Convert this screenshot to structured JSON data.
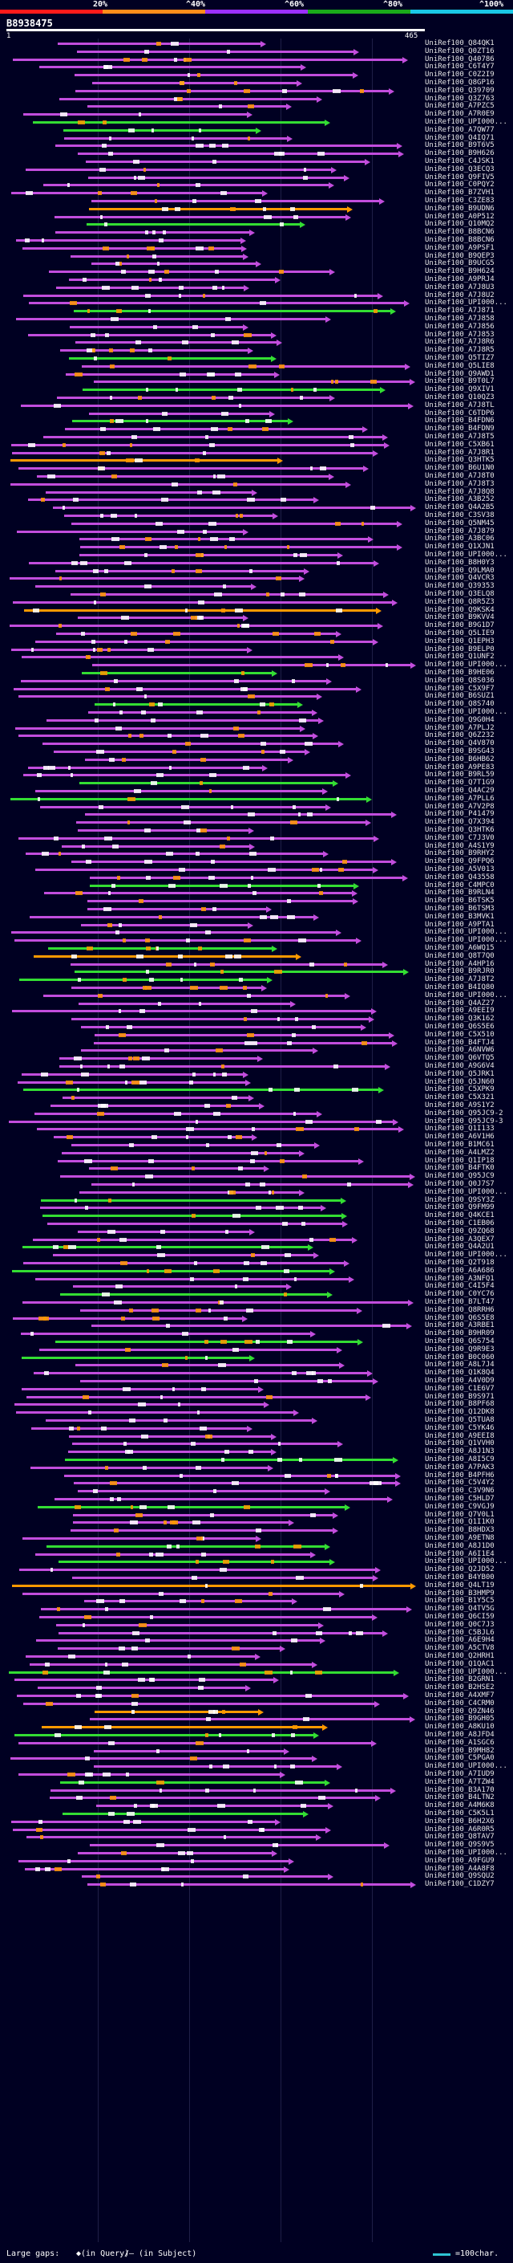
{
  "scale": {
    "labels": [
      "20%",
      "^40%",
      "^60%",
      "^80%",
      "^100%"
    ],
    "colors": [
      "#ff1a1a",
      "#ff8c1a",
      "#9b30ff",
      "#1aaa1a",
      "#1ac8e6"
    ]
  },
  "query": {
    "id": "B8938475",
    "start": "1",
    "end": "465"
  },
  "colors": {
    "purple": "#c24ddd",
    "green": "#33dd33",
    "orange": "#ff9900",
    "magenta": "#ff66ff"
  },
  "hits": [
    "UniRef100_Q84QK1",
    "UniRef100_Q0ZT16",
    "UniRef100_Q40786",
    "UniRef100_C6T4Y7",
    "UniRef100_C0Z2I9",
    "UniRef100_Q8GP16",
    "UniRef100_Q39709",
    "UniRef100_Q3Z763",
    "UniRef100_A7PZC5",
    "UniRef100_A7R0E9",
    "UniRef100_UPI000...",
    "UniRef100_A7QW77",
    "UniRef100_Q4IQ71",
    "UniRef100_B9T6V5",
    "UniRef100_B9H626",
    "UniRef100_C4JSK1",
    "UniRef100_Q3ECQ3",
    "UniRef100_Q9FIV5",
    "UniRef100_C0PQY2",
    "UniRef100_B7ZVH1",
    "UniRef100_C3ZE83",
    "UniRef100_B9UDN6",
    "UniRef100_A0P512",
    "UniRef100_Q10MQ2",
    "UniRef100_B8BCN6",
    "UniRef100_B8BCN6",
    "UniRef100_A9PSF1",
    "UniRef100_B9QEP3",
    "UniRef100_B9UCG5",
    "UniRef100_B9H624",
    "UniRef100_A9PRJ4",
    "UniRef100_A7J8U3",
    "UniRef100_A7J8U2",
    "UniRef100_UPI000...",
    "UniRef100_A7J871",
    "UniRef100_A7J858",
    "UniRef100_A7J856",
    "UniRef100_A7J853",
    "UniRef100_A7J8R6",
    "UniRef100_A7J8R5",
    "UniRef100_Q5TIZ7",
    "UniRef100_Q5LIE8",
    "UniRef100_Q9AWD1",
    "UniRef100_B9T0L7",
    "UniRef100_Q9XIV1",
    "UniRef100_Q10QZ3",
    "UniRef100_A7J8TL",
    "UniRef100_C6TDP6",
    "UniRef100_B4FDN6",
    "UniRef100_B4FDN9",
    "UniRef100_A7J8T5",
    "UniRef100_C5XB61",
    "UniRef100_A7J8R1",
    "UniRef100_Q3HTK5",
    "UniRef100_B6U1N0",
    "UniRef100_A7J8T0",
    "UniRef100_A7J8T3",
    "UniRef100_A7J8Q8",
    "UniRef100_A3B252",
    "UniRef100_Q4A2B5",
    "UniRef100_C3SV38",
    "UniRef100_Q5NM45",
    "UniRef100_A7J879",
    "UniRef100_A3BC06",
    "UniRef100_Q1XJN1",
    "UniRef100_UPI000...",
    "UniRef100_B8H0Y3",
    "UniRef100_Q9LMA0",
    "UniRef100_Q4VCR3",
    "UniRef100_Q39353",
    "UniRef100_Q3ELQ8",
    "UniRef100_Q8R5Z3",
    "UniRef100_Q9KSK4",
    "UniRef100_B9KVV4",
    "UniRef100_B9G1D7",
    "UniRef100_Q5LIE9",
    "UniRef100_Q1EPH3",
    "UniRef100_B9ELP0",
    "UniRef100_Q1UNF2",
    "UniRef100_UPI000...",
    "UniRef100_B9HE06",
    "UniRef100_Q8S036",
    "UniRef100_C5X9F7",
    "UniRef100_B6SUZ1",
    "UniRef100_Q8S740",
    "UniRef100_UPI000...",
    "UniRef100_Q9G0H4",
    "UniRef100_A7PLJ2",
    "UniRef100_Q6Z232",
    "UniRef100_Q4V870",
    "UniRef100_B9SG43",
    "UniRef100_B6HB62",
    "UniRef100_A9PE83",
    "UniRef100_B9RL59",
    "UniRef100_Q7T1G9",
    "UniRef100_Q4AC29",
    "UniRef100_A7PLL6",
    "UniRef100_A7V2P8",
    "UniRef100_P41479",
    "UniRef100_Q7X394",
    "UniRef100_Q3HTK6",
    "UniRef100_C7J3V0",
    "UniRef100_A4S1Y9",
    "UniRef100_B9RHY2",
    "UniRef100_Q9FPQ6",
    "UniRef100_A5V013",
    "UniRef100_Q43558",
    "UniRef100_C4MPC0",
    "UniRef100_B9RLN4",
    "UniRef100_B6TSK5",
    "UniRef100_B6TSM3",
    "UniRef100_B3MVK1",
    "UniRef100_A9PTA1",
    "UniRef100_UPI000...",
    "UniRef100_UPI000...",
    "UniRef100_A6WQ15",
    "UniRef100_Q8T7Q0",
    "UniRef100_A4HP16",
    "UniRef100_B9RJR0",
    "UniRef100_A7J8T2",
    "UniRef100_B4IQ80",
    "UniRef100_UPI000...",
    "UniRef100_Q4AZ27",
    "UniRef100_A9EEI9",
    "UniRef100_Q3K162",
    "UniRef100_Q6S5E6",
    "UniRef100_C5X510",
    "UniRef100_B4FTJ4",
    "UniRef100_A6NVW6",
    "UniRef100_Q6VTQ5",
    "UniRef100_A9G6V4",
    "UniRef100_Q5JRK1",
    "UniRef100_Q5JN60",
    "UniRef100_C5XPK9",
    "UniRef100_C5X321",
    "UniRef100_A9S1Y2",
    "UniRef100_Q95JC9-2",
    "UniRef100_Q95JC9-3",
    "UniRef100_Q1I133",
    "UniRef100_A6V1H6",
    "UniRef100_B1MC61",
    "UniRef100_A4LMZ2",
    "UniRef100_Q1IP18",
    "UniRef100_B4FTK0",
    "UniRef100_Q95JC9",
    "UniRef100_Q0J7S7",
    "UniRef100_UPI000...",
    "UniRef100_Q9SY3Z",
    "UniRef100_Q9FM99",
    "UniRef100_Q4KCE1",
    "UniRef100_C1EB06",
    "UniRef100_Q9ZQ68",
    "UniRef100_A3QEX7",
    "UniRef100_Q4A2U1",
    "UniRef100_UPI000...",
    "UniRef100_Q2T918",
    "UniRef100_A6A686",
    "UniRef100_A3NFQ1",
    "UniRef100_C4I5F4",
    "UniRef100_C0YC76",
    "UniRef100_B7LT47",
    "UniRef100_Q8RRH6",
    "UniRef100_Q6S5E8",
    "UniRef100_A3RBE1",
    "UniRef100_B9HR09",
    "UniRef100_Q6S754",
    "UniRef100_Q9R9E3",
    "UniRef100_B0C060",
    "UniRef100_A8L7J4",
    "UniRef100_Q1K8Q4",
    "UniRef100_A4V0D9",
    "UniRef100_C1E6V7",
    "UniRef100_B9S971",
    "UniRef100_B8PF68",
    "UniRef100_Q12DK8",
    "UniRef100_Q5TUA8",
    "UniRef100_C5YK46",
    "UniRef100_A9EEI8",
    "UniRef100_Q1VVH0",
    "UniRef100_A8J1N3",
    "UniRef100_A8I5C9",
    "UniRef100_A7PAK3",
    "UniRef100_B4PFH6",
    "UniRef100_C5V4Y2",
    "UniRef100_C3V9N6",
    "UniRef100_C5HLD7",
    "UniRef100_C9VGJ9",
    "UniRef100_Q7V0L1",
    "UniRef100_Q1I1K0",
    "UniRef100_B8HDX3",
    "UniRef100_A9ETN8",
    "UniRef100_A8J1D0",
    "UniRef100_A6I1E4",
    "UniRef100_UPI000...",
    "UniRef100_Q2JD52",
    "UniRef100_B4YB00",
    "UniRef100_Q4LT19",
    "UniRef100_B3HMP9",
    "UniRef100_B1Y5C5",
    "UniRef100_Q4TV5G",
    "UniRef100_Q6CI59",
    "UniRef100_Q0C7J3",
    "UniRef100_C5BJL6",
    "UniRef100_A6E9H4",
    "UniRef100_A5CTV8",
    "UniRef100_Q2HRH1",
    "UniRef100_Q1QAC1",
    "UniRef100_UPI000...",
    "UniRef100_B2GRN1",
    "UniRef100_B2HSE2",
    "UniRef100_A4XMF7",
    "UniRef100_C4CRM0",
    "UniRef100_Q9ZN46",
    "UniRef100_B9GH05",
    "UniRef100_A8KU10",
    "UniRef100_A8JFD4",
    "UniRef100_A1SGC6",
    "UniRef100_B9MH82",
    "UniRef100_C5PGA0",
    "UniRef100_UPI000...",
    "UniRef100_A7IUD9",
    "UniRef100_A7TZW4",
    "UniRef100_B3A170",
    "UniRef100_B4LTN2",
    "UniRef100_A4M6K8",
    "UniRef100_C5K5L1",
    "UniRef100_B6H2X6",
    "UniRef100_A6R0R5",
    "UniRef100_Q8TAV7",
    "UniRef100_Q9S9V5",
    "UniRef100_UPI000...",
    "UniRef100_A9FGU9",
    "UniRef100_A4A8F8",
    "UniRef100_Q9SQU2",
    "UniRef100_C1DZY7"
  ],
  "legend": {
    "large_gaps": "Large gaps:",
    "in_query": "◆(in Query)",
    "in_subject": "/— (in Subject)",
    "swatch_label": "=100char."
  }
}
